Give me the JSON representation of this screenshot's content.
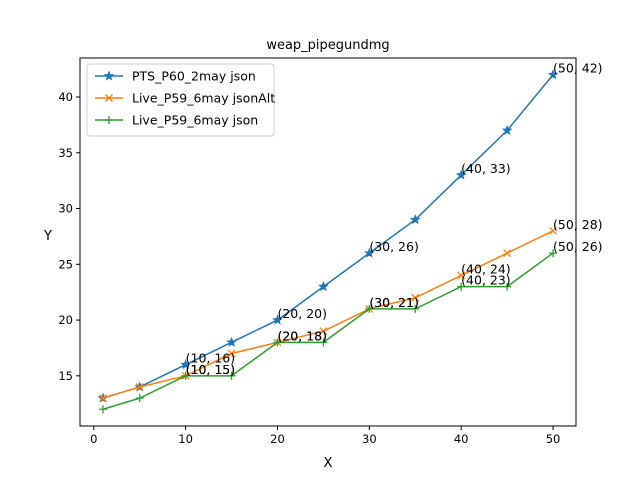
{
  "chart_data": {
    "type": "line",
    "title": "weap_pipegundmg",
    "xlabel": "X",
    "ylabel": "Y",
    "xlim": [
      -1.5,
      52.5
    ],
    "ylim": [
      10.5,
      43.5
    ],
    "xticks": [
      0,
      10,
      20,
      30,
      40,
      50
    ],
    "yticks": [
      15,
      20,
      25,
      30,
      35,
      40
    ],
    "grid": false,
    "legend_position": "upper-left",
    "series": [
      {
        "name": "PTS_P60_2may json",
        "color": "#1f77b4",
        "marker": "star",
        "x": [
          1,
          5,
          10,
          15,
          20,
          25,
          30,
          35,
          40,
          45,
          50
        ],
        "y": [
          13,
          14,
          16,
          18,
          20,
          23,
          26,
          29,
          33,
          37,
          42
        ]
      },
      {
        "name": "Live_P59_6may jsonAlt",
        "color": "#ff7f0e",
        "marker": "x",
        "x": [
          1,
          5,
          10,
          15,
          20,
          25,
          30,
          35,
          40,
          45,
          50
        ],
        "y": [
          13,
          14,
          15,
          17,
          18,
          19,
          21,
          22,
          24,
          26,
          28
        ]
      },
      {
        "name": "Live_P59_6may json",
        "color": "#2ca02c",
        "marker": "plus",
        "x": [
          1,
          5,
          10,
          15,
          20,
          25,
          30,
          35,
          40,
          45,
          50
        ],
        "y": [
          12,
          13,
          15,
          15,
          18,
          18,
          21,
          21,
          23,
          23,
          26
        ]
      }
    ],
    "annotations": [
      {
        "x": 10,
        "y": 16,
        "text": "(10, 16)"
      },
      {
        "x": 10,
        "y": 15,
        "text": "(10, 15)"
      },
      {
        "x": 10,
        "y": 15,
        "text": "(10, 15)"
      },
      {
        "x": 20,
        "y": 20,
        "text": "(20, 20)"
      },
      {
        "x": 20,
        "y": 18,
        "text": "(20, 18)"
      },
      {
        "x": 20,
        "y": 18,
        "text": "(20, 18)"
      },
      {
        "x": 30,
        "y": 26,
        "text": "(30, 26)"
      },
      {
        "x": 30,
        "y": 21,
        "text": "(30, 21)"
      },
      {
        "x": 30,
        "y": 21,
        "text": "(30, 21)"
      },
      {
        "x": 40,
        "y": 33,
        "text": "(40, 33)"
      },
      {
        "x": 40,
        "y": 24,
        "text": "(40, 24)"
      },
      {
        "x": 40,
        "y": 23,
        "text": "(40, 23)"
      },
      {
        "x": 50,
        "y": 42,
        "text": "(50, 42)"
      },
      {
        "x": 50,
        "y": 28,
        "text": "(50, 28)"
      },
      {
        "x": 50,
        "y": 26,
        "text": "(50, 26)"
      }
    ]
  }
}
